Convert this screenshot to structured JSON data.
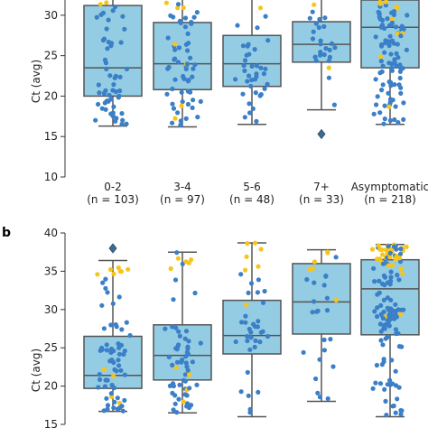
{
  "chart_data": [
    {
      "type": "box",
      "panel_label": "",
      "ylabel": "Ct (avg)",
      "ylim": [
        10,
        33
      ],
      "yticks": [
        10,
        15,
        20,
        25,
        30
      ],
      "categories": [
        "0-2\n(n = 103)",
        "3-4\n(n = 97)",
        "5-6\n(n = 48)",
        "7+\n(n = 33)",
        "Asymptomatic\n(n = 218)"
      ],
      "boxes": [
        {
          "q1": 20.0,
          "median": 23.5,
          "q3": 31.2,
          "whisker_low": 16.3,
          "whisker_high": 33.5,
          "outliers": []
        },
        {
          "q1": 20.8,
          "median": 24.0,
          "q3": 29.1,
          "whisker_low": 16.2,
          "whisker_high": 33.5,
          "outliers": []
        },
        {
          "q1": 21.2,
          "median": 24.0,
          "q3": 27.5,
          "whisker_low": 16.5,
          "whisker_high": 33.5,
          "outliers": []
        },
        {
          "q1": 24.2,
          "median": 26.4,
          "q3": 29.2,
          "whisker_low": 18.3,
          "whisker_high": 33.5,
          "outliers": [
            15.3
          ]
        },
        {
          "q1": 23.5,
          "median": 28.5,
          "q3": 33.5,
          "whisker_low": 16.5,
          "whisker_high": 33.5,
          "outliers": []
        }
      ],
      "colors": {
        "box": "#93cce3",
        "edge": "#555555",
        "dot_blue": "#3a7fc7",
        "dot_yellow": "#f7c51a"
      }
    },
    {
      "type": "box",
      "panel_label": "b",
      "ylabel": "Ct (avg)",
      "ylim": [
        15,
        40
      ],
      "yticks": [
        15,
        20,
        25,
        30,
        35,
        40
      ],
      "categories": [
        "",
        "",
        "",
        "",
        ""
      ],
      "boxes": [
        {
          "q1": 19.7,
          "median": 21.4,
          "q3": 26.5,
          "whisker_low": 16.7,
          "whisker_high": 36.4,
          "outliers": [
            38.0
          ]
        },
        {
          "q1": 20.8,
          "median": 24.0,
          "q3": 28.0,
          "whisker_low": 16.5,
          "whisker_high": 37.5,
          "outliers": []
        },
        {
          "q1": 24.2,
          "median": 26.6,
          "q3": 31.2,
          "whisker_low": 16.0,
          "whisker_high": 38.7,
          "outliers": []
        },
        {
          "q1": 26.8,
          "median": 31.0,
          "q3": 36.0,
          "whisker_low": 18.0,
          "whisker_high": 37.8,
          "outliers": []
        },
        {
          "q1": 26.7,
          "median": 32.7,
          "q3": 36.5,
          "whisker_low": 16.0,
          "whisker_high": 38.5,
          "outliers": []
        }
      ],
      "colors": {
        "box": "#93cce3",
        "edge": "#555555",
        "dot_blue": "#3a7fc7",
        "dot_yellow": "#f7c51a"
      }
    }
  ]
}
